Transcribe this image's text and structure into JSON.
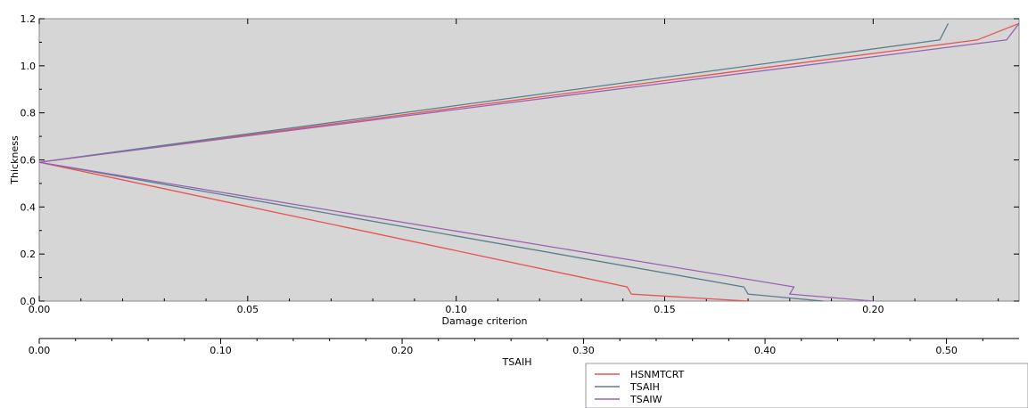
{
  "chart_data": {
    "type": "line",
    "title": "",
    "xlabel": "Damage criterion",
    "ylabel": "Thickness",
    "xlim": [
      0.0,
      0.235
    ],
    "ylim": [
      0.0,
      1.2
    ],
    "x_ticks": [
      "0.00",
      "0.05",
      "0.10",
      "0.15",
      "0.20"
    ],
    "y_ticks": [
      "0.0",
      "0.2",
      "0.4",
      "0.6",
      "0.8",
      "1.0",
      "1.2"
    ],
    "secondary_axis": {
      "label": "TSAIH",
      "lim": [
        0.0,
        0.54
      ],
      "ticks": [
        "0.00",
        "0.10",
        "0.20",
        "0.30",
        "0.40",
        "0.50"
      ]
    },
    "grid": false,
    "legend_position": "bottom-right",
    "series": [
      {
        "name": "HSNMTCRT",
        "color": "#e8534f",
        "x": [
          0.17,
          0.142,
          0.141,
          0.0,
          0.225,
          0.235
        ],
        "y": [
          0.0,
          0.03,
          0.06,
          0.59,
          1.11,
          1.18
        ]
      },
      {
        "name": "TSAIH",
        "color": "#5b7e8e",
        "x": [
          0.188,
          0.17,
          0.169,
          0.0,
          0.216,
          0.218
        ],
        "y": [
          0.0,
          0.03,
          0.06,
          0.59,
          1.11,
          1.18
        ]
      },
      {
        "name": "TSAIW",
        "color": "#9a62b5",
        "x": [
          0.2,
          0.18,
          0.181,
          0.0,
          0.232,
          0.235
        ],
        "y": [
          0.0,
          0.03,
          0.06,
          0.59,
          1.11,
          1.18
        ]
      }
    ]
  }
}
